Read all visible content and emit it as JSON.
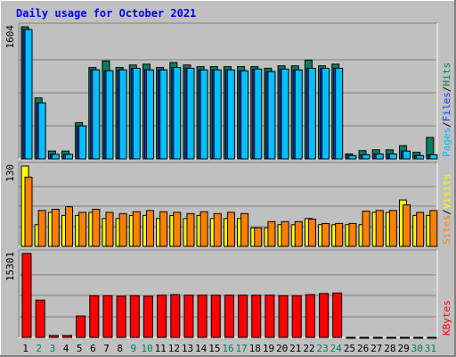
{
  "title": "Daily usage for October 2021",
  "colors": {
    "frame_bg": "#c0c0c0",
    "title": "#0000ff",
    "hits": "#00805c",
    "files": "#0040ff",
    "pages": "#00c0ff",
    "visits": "#ffff00",
    "sites": "#ff8000",
    "kbytes": "#ff0000",
    "weekend_label": "#00805c",
    "weekday_label": "#000000"
  },
  "chart_data": [
    {
      "type": "bar",
      "name": "hits-files-pages",
      "ylim": [
        0,
        1604
      ],
      "max_label": "1604",
      "legend": [
        {
          "key": "pages",
          "label": "Pages"
        },
        {
          "key": "files",
          "label": "Files"
        },
        {
          "key": "hits",
          "label": "Hits"
        }
      ],
      "x": [
        1,
        2,
        3,
        4,
        5,
        6,
        7,
        8,
        9,
        10,
        11,
        12,
        13,
        14,
        15,
        16,
        17,
        18,
        19,
        20,
        21,
        22,
        23,
        24,
        25,
        26,
        27,
        28,
        29,
        30,
        31
      ],
      "series": [
        {
          "key": "hits",
          "values": [
            1604,
            740,
            95,
            95,
            440,
            1110,
            1190,
            1110,
            1140,
            1150,
            1110,
            1170,
            1140,
            1120,
            1120,
            1120,
            1120,
            1120,
            1100,
            1130,
            1130,
            1200,
            1130,
            1150,
            60,
            100,
            110,
            110,
            160,
            80,
            260
          ]
        },
        {
          "key": "files",
          "values": [
            1570,
            680,
            55,
            55,
            400,
            1080,
            1070,
            1080,
            1100,
            1080,
            1080,
            1110,
            1100,
            1080,
            1080,
            1080,
            1070,
            1090,
            1060,
            1090,
            1080,
            1100,
            1100,
            1100,
            40,
            50,
            60,
            60,
            95,
            40,
            50
          ]
        },
        {
          "key": "pages",
          "values": [
            1570,
            680,
            55,
            55,
            400,
            1080,
            1070,
            1080,
            1100,
            1080,
            1080,
            1110,
            1100,
            1080,
            1080,
            1080,
            1070,
            1090,
            1060,
            1090,
            1080,
            1100,
            1100,
            1100,
            40,
            50,
            60,
            60,
            95,
            40,
            50
          ]
        }
      ]
    },
    {
      "type": "bar",
      "name": "visits-sites",
      "ylim": [
        0,
        130
      ],
      "max_label": "130",
      "legend": [
        {
          "key": "sites",
          "label": "Sites"
        },
        {
          "key": "visits",
          "label": "Visits"
        }
      ],
      "x": [
        1,
        2,
        3,
        4,
        5,
        6,
        7,
        8,
        9,
        10,
        11,
        12,
        13,
        14,
        15,
        16,
        17,
        18,
        19,
        20,
        21,
        22,
        23,
        24,
        25,
        26,
        27,
        28,
        29,
        30,
        31
      ],
      "series": [
        {
          "key": "visits",
          "values": [
            130,
            35,
            55,
            50,
            50,
            55,
            45,
            45,
            50,
            50,
            45,
            50,
            45,
            50,
            45,
            45,
            45,
            30,
            30,
            35,
            35,
            45,
            35,
            35,
            35,
            35,
            55,
            55,
            75,
            50,
            50
          ]
        },
        {
          "key": "sites",
          "values": [
            112,
            58,
            60,
            64,
            55,
            60,
            55,
            53,
            56,
            58,
            56,
            55,
            53,
            56,
            53,
            55,
            53,
            30,
            40,
            40,
            40,
            44,
            37,
            37,
            37,
            57,
            58,
            58,
            67,
            55,
            58
          ]
        }
      ]
    },
    {
      "type": "bar",
      "name": "kbytes",
      "ylim": [
        0,
        15301
      ],
      "max_label": "15301",
      "legend": [
        {
          "key": "kbytes",
          "label": "KBytes"
        }
      ],
      "x": [
        1,
        2,
        3,
        4,
        5,
        6,
        7,
        8,
        9,
        10,
        11,
        12,
        13,
        14,
        15,
        16,
        17,
        18,
        19,
        20,
        21,
        22,
        23,
        24,
        25,
        26,
        27,
        28,
        29,
        30,
        31
      ],
      "series": [
        {
          "key": "kbytes",
          "values": [
            15301,
            6800,
            350,
            350,
            3900,
            7600,
            7600,
            7500,
            7600,
            7500,
            7700,
            7800,
            7700,
            7700,
            7700,
            7700,
            7700,
            7700,
            7700,
            7600,
            7600,
            7800,
            8000,
            8100,
            0,
            0,
            0,
            0,
            0,
            0,
            0
          ]
        }
      ]
    }
  ],
  "x_weekend_days": [
    2,
    3,
    9,
    10,
    16,
    17,
    23,
    24,
    30,
    31
  ]
}
